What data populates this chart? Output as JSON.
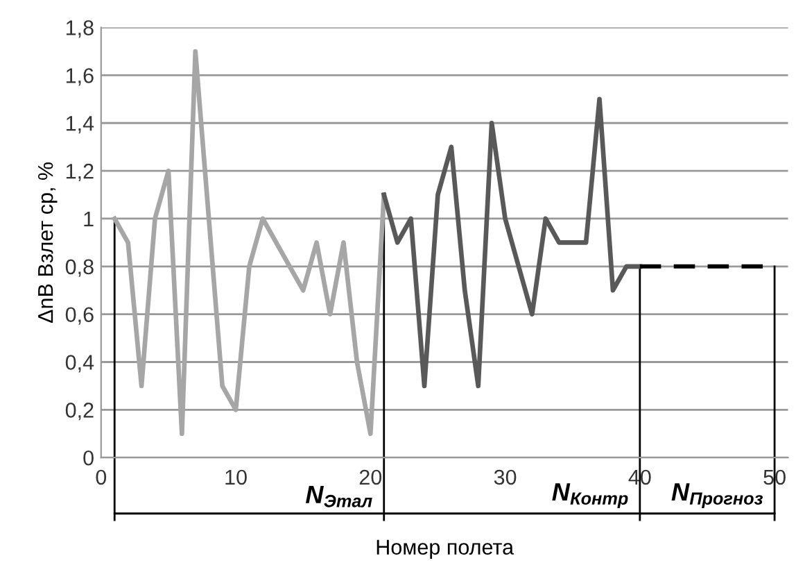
{
  "chart_data": {
    "type": "line",
    "xlabel": "Номер полета",
    "ylabel": "ΔnВ Взлет ср, %",
    "series": [
      {
        "color": "#a6a6a6",
        "x": [
          1,
          2,
          3,
          4,
          5,
          6,
          7,
          8,
          9,
          10,
          11,
          12,
          13,
          14,
          15,
          16,
          17,
          18,
          19,
          20,
          21
        ],
        "values": [
          1.0,
          0.9,
          0.3,
          1.0,
          1.2,
          0.1,
          1.7,
          1.0,
          0.3,
          0.2,
          0.8,
          1.0,
          0.9,
          0.8,
          0.7,
          0.9,
          0.6,
          0.9,
          0.4,
          0.1,
          1.1
        ]
      },
      {
        "color": "#595959",
        "x": [
          21,
          22,
          23,
          24,
          25,
          26,
          27,
          28,
          29,
          30,
          31,
          32,
          33,
          34,
          35,
          36,
          37,
          38,
          39,
          40
        ],
        "values": [
          1.1,
          0.9,
          1.0,
          0.3,
          1.1,
          1.3,
          0.7,
          0.3,
          1.4,
          1.0,
          0.8,
          0.6,
          1.0,
          0.9,
          0.9,
          0.9,
          1.5,
          0.7,
          0.8,
          0.8
        ]
      },
      {
        "color": "#000000",
        "line_style": "dashed",
        "x": [
          40,
          50
        ],
        "values": [
          0.8,
          0.8
        ]
      }
    ],
    "xlim": [
      0,
      51
    ],
    "xticks": [
      0,
      10,
      20,
      30,
      40,
      50
    ],
    "ylim": [
      0,
      1.8
    ],
    "yticks": [
      0,
      {
        "value": 0.2,
        "label": "0,2"
      },
      {
        "value": 0.4,
        "label": "0,4"
      },
      {
        "value": 0.6,
        "label": "0,6"
      },
      {
        "value": 0.8,
        "label": "0,8"
      },
      1,
      {
        "value": 1.2,
        "label": "1,2"
      },
      {
        "value": 1.4,
        "label": "1,4"
      },
      {
        "value": 1.6,
        "label": "1,6"
      },
      {
        "value": 1.8,
        "label": "1,8"
      }
    ],
    "ref_lines": [
      {
        "axis": "x",
        "value": 1,
        "color": "#000000"
      },
      {
        "axis": "x",
        "value": 21,
        "color": "#000000"
      },
      {
        "axis": "x",
        "value": 40,
        "color": "#000000"
      },
      {
        "axis": "x",
        "value": 50,
        "color": "#000000"
      }
    ],
    "annotations": [
      "N$_{Этал}$",
      "N$_{Контр}$",
      "N$_{Прогноз}$"
    ],
    "grid": "y",
    "legend": false,
    "marker": "none"
  }
}
